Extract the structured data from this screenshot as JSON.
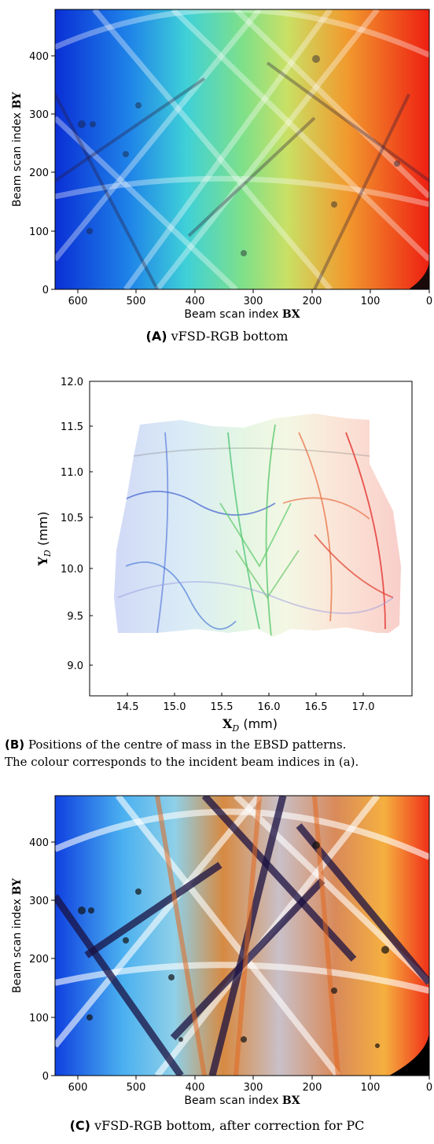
{
  "panels": {
    "a": {
      "letter": "(A)",
      "caption": "vFSD-RGB bottom",
      "ylabel_prefix": "Beam scan index ",
      "ylabel_var": "BY",
      "xlabel_prefix": "Beam scan index ",
      "xlabel_var": "BX",
      "x_ticks": [
        "600",
        "500",
        "400",
        "300",
        "200",
        "100",
        "0"
      ],
      "y_ticks": [
        "0",
        "100",
        "200",
        "300",
        "400"
      ]
    },
    "b": {
      "letter": "(B)",
      "caption_line1": "Positions of the centre of mass in the EBSD patterns.",
      "caption_line2": "The colour corresponds to the incident beam indices in (a).",
      "ylabel_var": "Y",
      "ylabel_sub": "D",
      "ylabel_unit": " (mm)",
      "xlabel_var": "X",
      "xlabel_sub": "D",
      "xlabel_unit": " (mm)",
      "x_ticks": [
        "14.5",
        "15.0",
        "15.5",
        "16.0",
        "16.5",
        "17.0"
      ],
      "y_ticks": [
        "12.0",
        "11.5",
        "11.0",
        "10.5",
        "10.0",
        "9.5",
        "9.0"
      ]
    },
    "c": {
      "letter": "(C)",
      "caption": "vFSD-RGB bottom, after correction for PC",
      "ylabel_prefix": "Beam scan index ",
      "ylabel_var": "BY",
      "xlabel_prefix": "Beam scan index ",
      "xlabel_var": "BX",
      "x_ticks": [
        "600",
        "500",
        "400",
        "300",
        "200",
        "100",
        "0"
      ],
      "y_ticks": [
        "0",
        "100",
        "200",
        "300",
        "400"
      ]
    }
  },
  "chart_data": [
    {
      "type": "heatmap",
      "title": "",
      "xlabel": "Beam scan index BX",
      "ylabel": "Beam scan index BY",
      "xlim": [
        640,
        0
      ],
      "ylim": [
        0,
        480
      ],
      "x_ticks": [
        600,
        500,
        400,
        300,
        200,
        100,
        0
      ],
      "y_ticks": [
        0,
        100,
        200,
        300,
        400
      ],
      "colormap": "blue-green-red across x"
    },
    {
      "type": "scatter",
      "title": "",
      "xlabel": "X_D (mm)",
      "ylabel": "Y_D (mm)",
      "xlim": [
        14.1,
        17.4
      ],
      "ylim": [
        8.7,
        12.0
      ],
      "x_ticks": [
        14.5,
        15.0,
        15.5,
        16.0,
        16.5,
        17.0
      ],
      "y_ticks": [
        9.0,
        9.5,
        10.0,
        10.5,
        11.0,
        11.5,
        12.0
      ],
      "extent": {
        "x": [
          14.3,
          17.3
        ],
        "y": [
          9.1,
          11.6
        ]
      }
    },
    {
      "type": "heatmap",
      "title": "",
      "xlabel": "Beam scan index BX",
      "ylabel": "Beam scan index BY",
      "xlim": [
        640,
        0
      ],
      "ylim": [
        0,
        480
      ],
      "x_ticks": [
        600,
        500,
        400,
        300,
        200,
        100,
        0
      ],
      "y_ticks": [
        0,
        100,
        200,
        300,
        400
      ]
    }
  ],
  "colors": {
    "blue": "#0a2fd6",
    "cyan": "#35b7e6",
    "green": "#7ee08a",
    "yellow": "#f4d148",
    "red": "#e8261a",
    "dark": "#2a1a3a"
  }
}
